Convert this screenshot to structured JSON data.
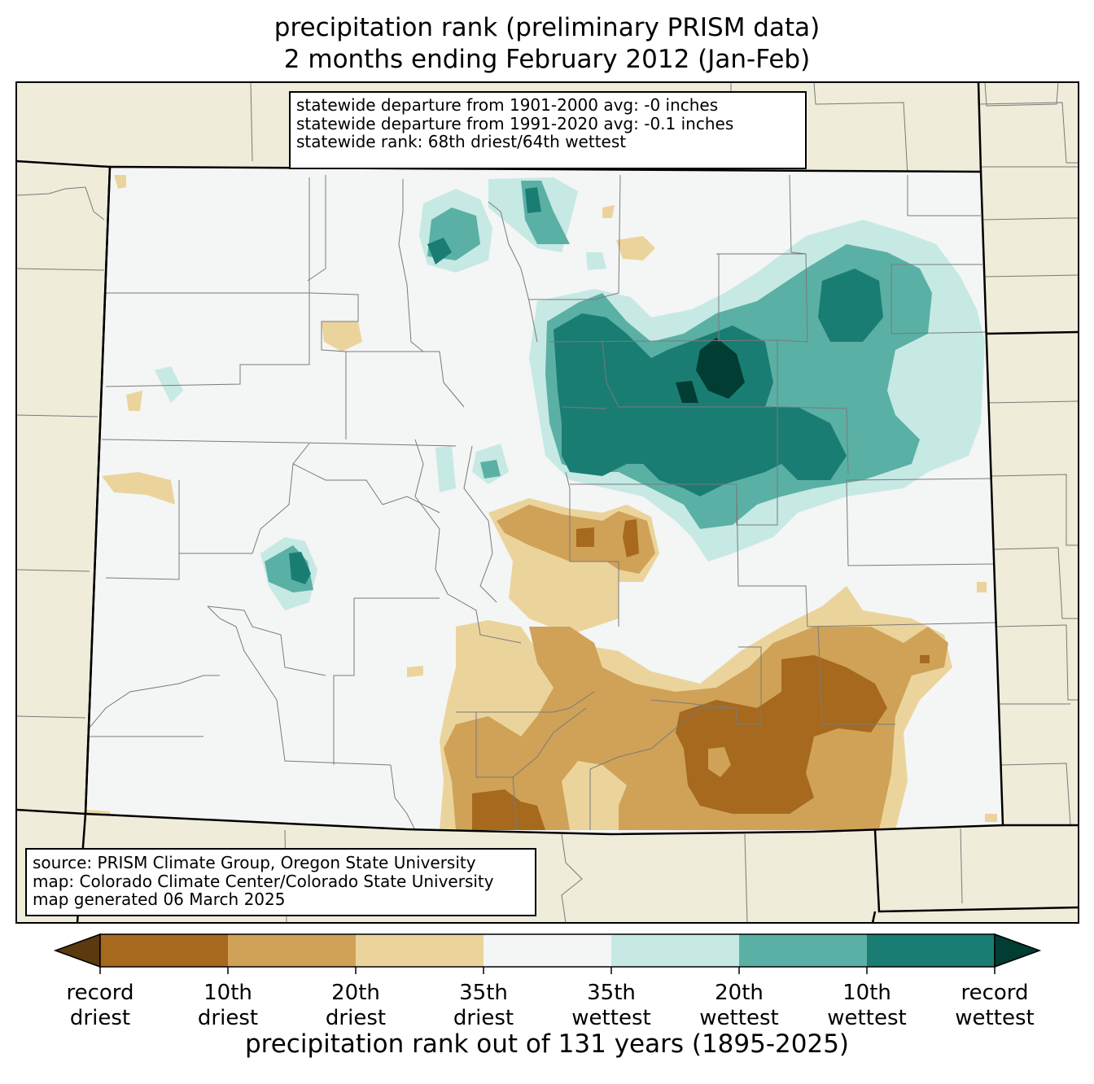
{
  "title": {
    "line1": "precipitation rank (preliminary PRISM data)",
    "line2": "2 months ending February 2012 (Jan-Feb)"
  },
  "stats": {
    "line1": "statewide departure from 1901-2000 avg: -0 inches",
    "line2": "statewide departure from 1991-2020 avg: -0.1 inches",
    "line3": "statewide rank: 68th driest/64th wettest"
  },
  "source": {
    "line1": "source: PRISM Climate Group, Oregon State University",
    "line2": "map: Colorado Climate Center/Colorado State University",
    "line3": "map generated 06 March 2025"
  },
  "colorbar": {
    "title": "precipitation rank out of 131 years (1895-2025)",
    "ticks": [
      {
        "line1": "record",
        "line2": "driest"
      },
      {
        "line1": "10th",
        "line2": "driest"
      },
      {
        "line1": "20th",
        "line2": "driest"
      },
      {
        "line1": "35th",
        "line2": "driest"
      },
      {
        "line1": "35th",
        "line2": "wettest"
      },
      {
        "line1": "20th",
        "line2": "wettest"
      },
      {
        "line1": "10th",
        "line2": "wettest"
      },
      {
        "line1": "record",
        "line2": "wettest"
      }
    ],
    "colors": [
      "#5a3a0e",
      "#a6691e",
      "#cfa257",
      "#ebd49c",
      "#f4f5f5",
      "#c6e9e4",
      "#5ab0a5",
      "#1a7d74",
      "#013d33"
    ]
  },
  "map_colors": {
    "background_land": "#efecda",
    "state_fill": "#f4f5f5"
  }
}
